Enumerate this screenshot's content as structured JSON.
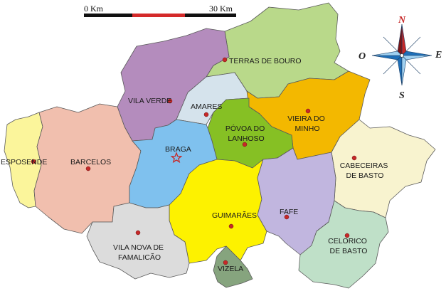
{
  "scale_bar": {
    "left_label": "0 Km",
    "right_label": "30 Km",
    "segment_colors": [
      "#111111",
      "#d42a2a",
      "#111111"
    ]
  },
  "compass": {
    "north": "N",
    "south": "S",
    "east": "E",
    "west": "O",
    "colors": {
      "north": "#c62828",
      "arms": "#1e6fb8",
      "light": "#9fd0f0"
    }
  },
  "capital_marker": {
    "icon": "star-icon",
    "color": "#c62828"
  },
  "seat_marker": {
    "icon": "dot-icon",
    "color": "#c62828"
  },
  "municipalities": [
    {
      "id": "terras-de-bouro",
      "lines": [
        "TERRAS DE BOURO"
      ],
      "color": "#b9d98a"
    },
    {
      "id": "vila-verde",
      "lines": [
        "VILA VERDE"
      ],
      "color": "#b48cbd"
    },
    {
      "id": "amares",
      "lines": [
        "AMARES"
      ],
      "color": "#d5e3ec"
    },
    {
      "id": "vieira-do-minho",
      "lines": [
        "VIEIRA DO",
        "MINHO"
      ],
      "color": "#f3b800"
    },
    {
      "id": "povoa-do-lanhoso",
      "lines": [
        "PÓVOA DO",
        "LANHOSO"
      ],
      "color": "#86c024"
    },
    {
      "id": "esposende",
      "lines": [
        "ESPOSENDE"
      ],
      "color": "#fbf59b"
    },
    {
      "id": "barcelos",
      "lines": [
        "BARCELOS"
      ],
      "color": "#f1bfae"
    },
    {
      "id": "braga",
      "lines": [
        "BRAGA"
      ],
      "color": "#7fc1ee"
    },
    {
      "id": "cabeceiras-de-basto",
      "lines": [
        "CABECEIRAS",
        "DE BASTO"
      ],
      "color": "#f8f3cf"
    },
    {
      "id": "guimaraes",
      "lines": [
        "GUIMARÃES"
      ],
      "color": "#fdf200"
    },
    {
      "id": "fafe",
      "lines": [
        "FAFE"
      ],
      "color": "#c1b6df"
    },
    {
      "id": "vila-nova-de-famalicao",
      "lines": [
        "VILA NOVA DE",
        "FAMALICÃO"
      ],
      "color": "#dcdcdc"
    },
    {
      "id": "celorico-de-basto",
      "lines": [
        "CELORICO",
        "DE BASTO"
      ],
      "color": "#bfe0c8"
    },
    {
      "id": "vizela",
      "lines": [
        "VIZELA"
      ],
      "color": "#86a47e"
    }
  ]
}
